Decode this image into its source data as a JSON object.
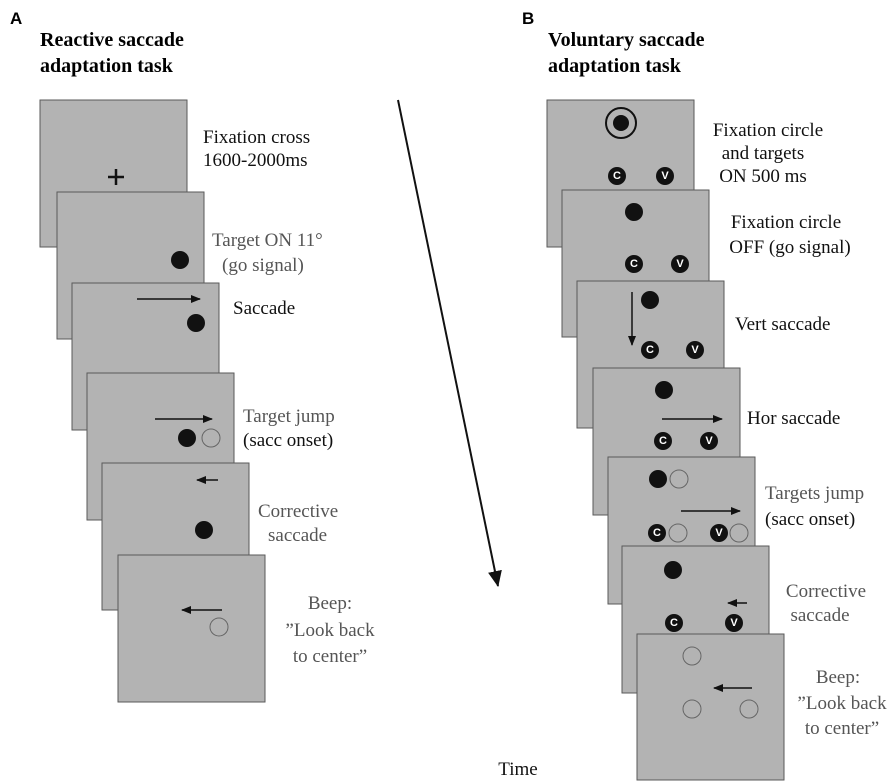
{
  "panels": [
    {
      "label": "A",
      "title": [
        "Reactive saccade",
        "adaptation task"
      ],
      "frames": [
        {
          "text": [
            "Fixation cross",
            "1600-2000ms"
          ]
        },
        {
          "text": [
            "Target ON 11°",
            "(go signal)"
          ]
        },
        {
          "text": [
            "Saccade"
          ]
        },
        {
          "text": [
            "Target jump",
            "(sacc onset)"
          ]
        },
        {
          "text": [
            "Corrective",
            "saccade"
          ]
        },
        {
          "text": [
            "Beep:",
            "”Look back",
            "to center”"
          ]
        }
      ]
    },
    {
      "label": "B",
      "title": [
        "Voluntary saccade",
        "adaptation task"
      ],
      "frames": [
        {
          "text": [
            "Fixation circle",
            "and targets",
            "ON 500 ms"
          ]
        },
        {
          "text": [
            "Fixation circle",
            "OFF (go signal)"
          ]
        },
        {
          "text": [
            "Vert saccade"
          ]
        },
        {
          "text": [
            "Hor saccade"
          ]
        },
        {
          "text": [
            "Targets jump",
            "(sacc onset)"
          ]
        },
        {
          "text": [
            "Corrective",
            "saccade"
          ]
        },
        {
          "text": [
            "Beep:",
            "”Look back",
            "to center”"
          ]
        }
      ]
    }
  ],
  "target_labels": [
    "C",
    "V"
  ],
  "time_label": "Time"
}
